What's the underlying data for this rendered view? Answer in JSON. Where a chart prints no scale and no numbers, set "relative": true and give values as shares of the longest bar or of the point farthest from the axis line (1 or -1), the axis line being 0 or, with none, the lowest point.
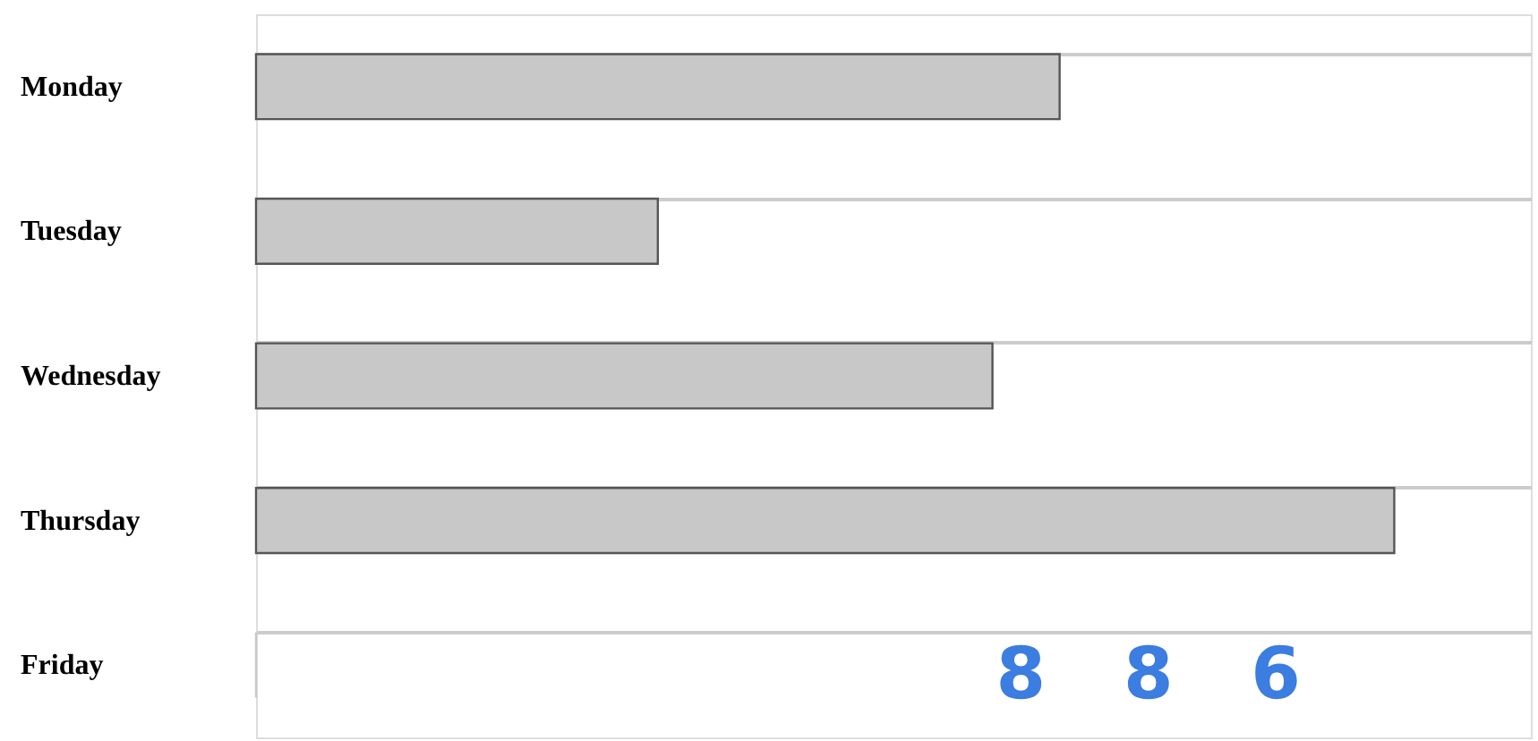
{
  "chart_data": {
    "type": "bar",
    "orientation": "horizontal",
    "relative": true,
    "categories": [
      "Monday",
      "Tuesday",
      "Wednesday",
      "Thursday",
      "Friday"
    ],
    "values": [
      0.706,
      0.353,
      0.647,
      1,
      0
    ],
    "color": "#c8c8c8",
    "grid": "y",
    "annotations": [
      "8",
      "8",
      "6"
    ]
  }
}
